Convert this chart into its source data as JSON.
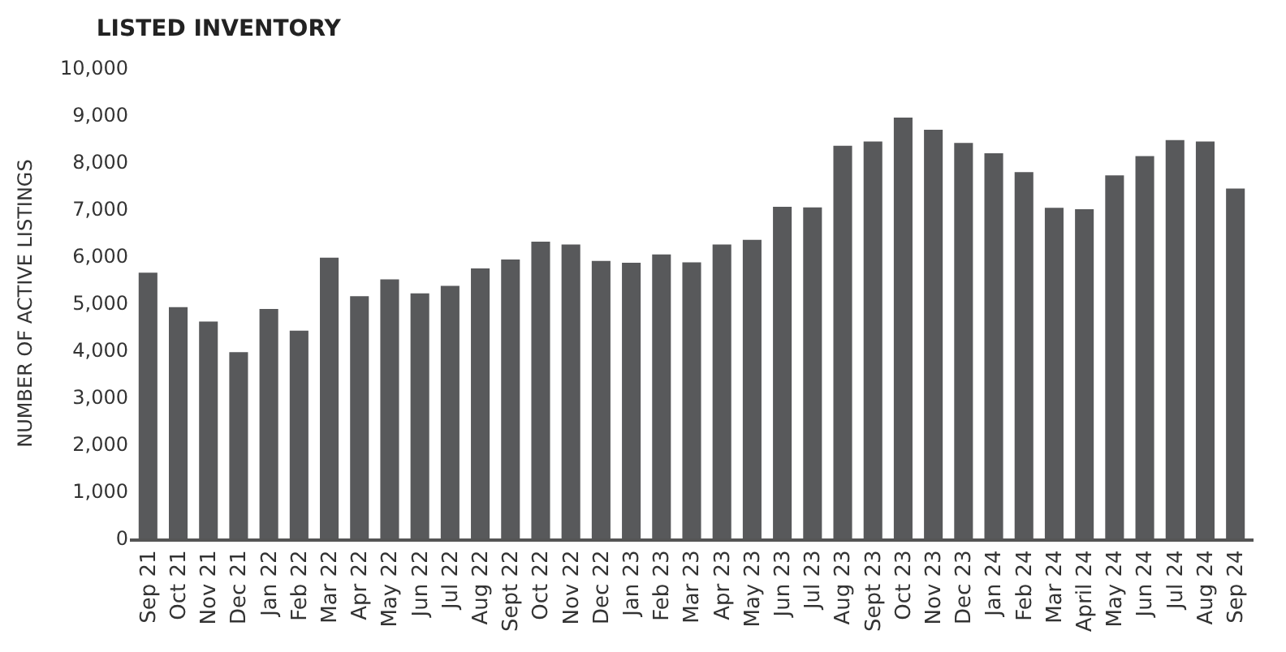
{
  "chart_data": {
    "type": "bar",
    "title": "LISTED INVENTORY",
    "ylabel": "NUMBER OF ACTIVE LISTINGS",
    "categories": [
      "Sep 21",
      "Oct 21",
      "Nov 21",
      "Dec 21",
      "Jan 22",
      "Feb 22",
      "Mar 22",
      "Apr 22",
      "May 22",
      "Jun 22",
      "Jul 22",
      "Aug 22",
      "Sept 22",
      "Oct 22",
      "Nov 22",
      "Dec 22",
      "Jan 23",
      "Feb 23",
      "Mar 23",
      "Apr 23",
      "May 23",
      "Jun 23",
      "Jul 23",
      "Aug 23",
      "Sept 23",
      "Oct 23",
      "Nov 23",
      "Dec 23",
      "Jan 24",
      "Feb 24",
      "Mar 24",
      "April 24",
      "May 24",
      "Jun 24",
      "Jul 24",
      "Aug 24",
      "Sep 24"
    ],
    "values": [
      5650,
      4920,
      4610,
      3960,
      4880,
      4420,
      5970,
      5150,
      5510,
      5210,
      5370,
      5740,
      5930,
      6310,
      6250,
      5900,
      5860,
      6040,
      5870,
      6250,
      6350,
      7050,
      7040,
      8350,
      8440,
      8950,
      8690,
      8410,
      8190,
      7790,
      7030,
      7000,
      7720,
      8130,
      8470,
      8440,
      7440
    ],
    "color": "#58595b",
    "ylim": [
      0,
      10000
    ],
    "yticks": [
      0,
      {
        "value": 1000,
        "label": "1,000"
      },
      {
        "value": 2000,
        "label": "2,000"
      },
      {
        "value": 3000,
        "label": "3,000"
      },
      {
        "value": 4000,
        "label": "4,000"
      },
      {
        "value": 5000,
        "label": "5,000"
      },
      {
        "value": 6000,
        "label": "6,000"
      },
      {
        "value": 7000,
        "label": "7,000"
      },
      {
        "value": 8000,
        "label": "8,000"
      },
      {
        "value": 9000,
        "label": "9,000"
      },
      {
        "value": 10000,
        "label": "10,000"
      }
    ],
    "legend": false
  }
}
